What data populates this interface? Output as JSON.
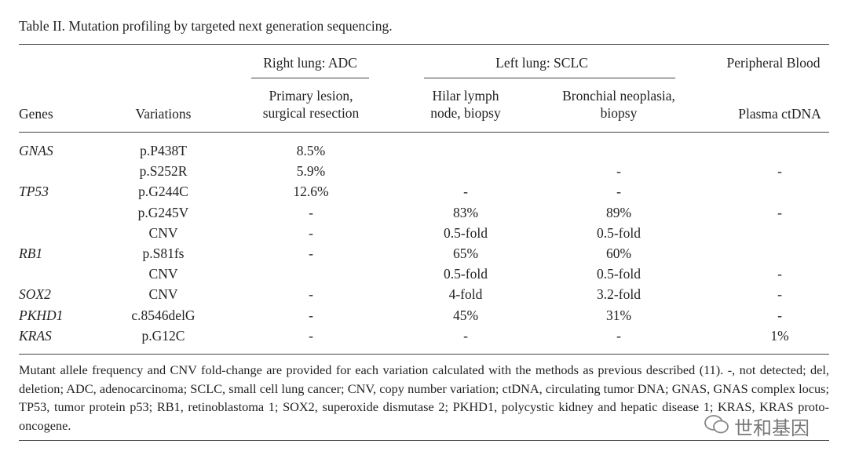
{
  "title": "Table II. Mutation profiling by targeted next generation sequencing.",
  "table": {
    "groups": [
      "Right lung: ADC",
      "Left lung: SCLC",
      "Peripheral Blood"
    ],
    "headers": [
      "Genes",
      "Variations",
      "Primary lesion, surgical resection",
      "Hilar lymph node, biopsy",
      "Bronchial neoplasia, biopsy",
      "Plasma ctDNA"
    ],
    "rows": [
      [
        "GNAS",
        "p.P438T",
        "8.5%",
        null,
        null,
        null
      ],
      [
        null,
        "p.S252R",
        "5.9%",
        null,
        "-",
        "-"
      ],
      [
        "TP53",
        "p.G244C",
        "12.6%",
        "-",
        "-",
        null
      ],
      [
        null,
        "p.G245V",
        "-",
        "83%",
        "89%",
        "-"
      ],
      [
        null,
        "CNV",
        "-",
        "0.5-fold",
        "0.5-fold",
        null
      ],
      [
        "RB1",
        "p.S81fs",
        "-",
        "65%",
        "60%",
        null
      ],
      [
        null,
        "CNV",
        null,
        "0.5-fold",
        "0.5-fold",
        "-"
      ],
      [
        "SOX2",
        "CNV",
        "-",
        "4-fold",
        "3.2-fold",
        "-"
      ],
      [
        "PKHD1",
        "c.8546delG",
        "-",
        "45%",
        "31%",
        "-"
      ],
      [
        "KRAS",
        "p.G12C",
        "-",
        "-",
        "-",
        "1%"
      ]
    ]
  },
  "footnote": "Mutant allele frequency and CNV fold-change are provided for each variation calculated with the methods as previous described (11). -, not detected; del, deletion; ADC, adenocarcinoma; SCLC, small cell lung cancer; CNV, copy number variation; ctDNA, circulating tumor DNA; GNAS, GNAS complex locus; TP53, tumor protein p53; RB1, retinoblastoma 1; SOX2, superoxide dismutase 2; PKHD1, polycystic kidney and hepatic disease 1; KRAS, KRAS proto-oncogene.",
  "watermark": "世和基因"
}
